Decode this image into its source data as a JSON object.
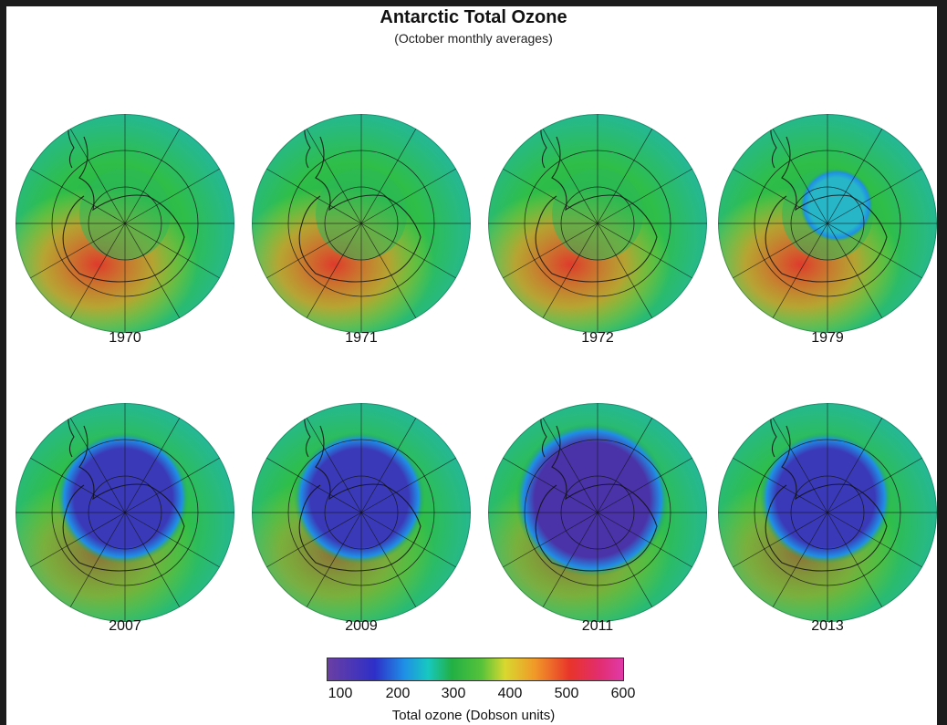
{
  "title": "Antarctic Total Ozone",
  "subtitle": "(October monthly averages)",
  "maps": [
    {
      "year": "1970",
      "hole": "none"
    },
    {
      "year": "1971",
      "hole": "none"
    },
    {
      "year": "1972",
      "hole": "none"
    },
    {
      "year": "1979",
      "hole": "small"
    },
    {
      "year": "2007",
      "hole": "large"
    },
    {
      "year": "2009",
      "hole": "large"
    },
    {
      "year": "2011",
      "hole": "very-large"
    },
    {
      "year": "2013",
      "hole": "large"
    }
  ],
  "colorbar": {
    "ticks": [
      "100",
      "200",
      "300",
      "400",
      "500",
      "600"
    ],
    "label": "Total ozone (Dobson units)",
    "range": [
      100,
      600
    ],
    "colors": {
      "100": "#6a3fa3",
      "200": "#2e2fc8",
      "300": "#22b045",
      "400": "#d8d830",
      "500": "#e8342a",
      "600": "#e03aa8"
    }
  }
}
